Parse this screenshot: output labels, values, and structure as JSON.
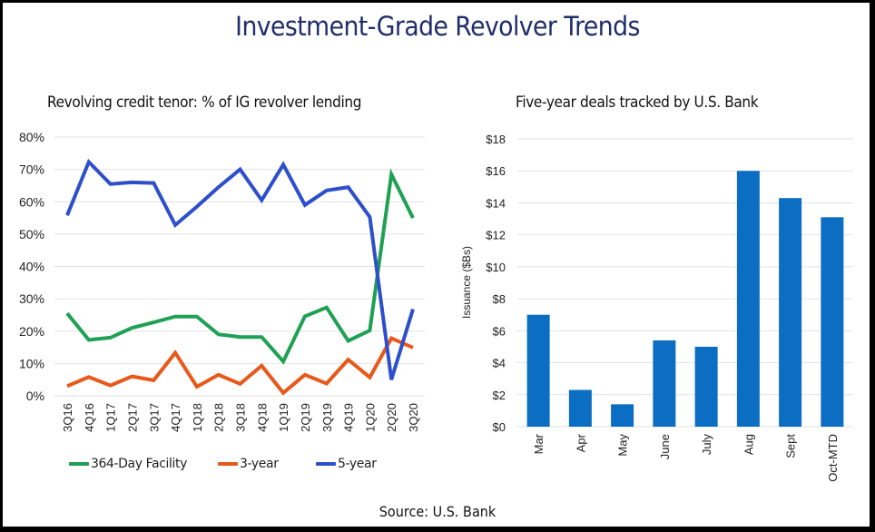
{
  "header": {
    "title": "Investment-Grade Revolver Trends"
  },
  "footer": {
    "source": "Source: U.S. Bank"
  },
  "colors": {
    "green": "#1ea153",
    "orange": "#e8581a",
    "blue": "#2d4fcc",
    "bar": "#0b6ec2",
    "title": "#1f2d6b",
    "grid": "#e2e2e2"
  },
  "chart_data": [
    {
      "type": "line",
      "title": "Revolving credit tenor: % of IG revolver lending",
      "xlabel": "",
      "ylabel": "",
      "ylim": [
        0,
        80
      ],
      "yticks": [
        0,
        10,
        20,
        30,
        40,
        50,
        60,
        70,
        80
      ],
      "ytick_labels": [
        "0%",
        "10%",
        "20%",
        "30%",
        "40%",
        "50%",
        "60%",
        "70%",
        "80%"
      ],
      "grid": true,
      "legend_position": "bottom",
      "x": [
        "3Q16",
        "4Q16",
        "1Q17",
        "2Q17",
        "3Q17",
        "4Q17",
        "1Q18",
        "2Q18",
        "3Q18",
        "4Q18",
        "1Q19",
        "2Q19",
        "3Q19",
        "4Q19",
        "1Q20",
        "2Q20",
        "3Q20"
      ],
      "series": [
        {
          "name": "364-Day Facility",
          "color": "#1ea153",
          "values": [
            25.5,
            17.3,
            18,
            21,
            22.7,
            24.5,
            24.5,
            19,
            18.2,
            18.2,
            10.6,
            24.6,
            27.3,
            17,
            20.2,
            68.5,
            55
          ]
        },
        {
          "name": "3-year",
          "color": "#e8581a",
          "values": [
            3,
            5.8,
            3.2,
            6,
            4.8,
            13.3,
            2.8,
            6.5,
            3.7,
            9.3,
            0.9,
            6.5,
            3.8,
            11.2,
            5.7,
            17.8,
            14.9
          ]
        },
        {
          "name": "5-year",
          "color": "#2d4fcc",
          "values": [
            55.8,
            72.3,
            65.5,
            66,
            65.8,
            52.8,
            58.5,
            64.5,
            70,
            60.5,
            71.5,
            59,
            63.5,
            64.5,
            55.3,
            5,
            26.8
          ]
        }
      ]
    },
    {
      "type": "bar",
      "title": "Five-year deals tracked by U.S. Bank",
      "xlabel": "",
      "ylabel": "Issuance ($Bs)",
      "ylim": [
        0,
        18
      ],
      "yticks": [
        0,
        2,
        4,
        6,
        8,
        10,
        12,
        14,
        16,
        18
      ],
      "ytick_labels": [
        "$0",
        "$2",
        "$4",
        "$6",
        "$8",
        "$10",
        "$12",
        "$14",
        "$16",
        "$18"
      ],
      "grid": true,
      "categories": [
        "Mar",
        "Apr",
        "May",
        "June",
        "July",
        "Aug",
        "Sept",
        "Oct-MTD"
      ],
      "values": [
        7.0,
        2.3,
        1.4,
        5.4,
        5.0,
        16.0,
        14.3,
        13.1
      ],
      "color": "#0b6ec2"
    }
  ]
}
